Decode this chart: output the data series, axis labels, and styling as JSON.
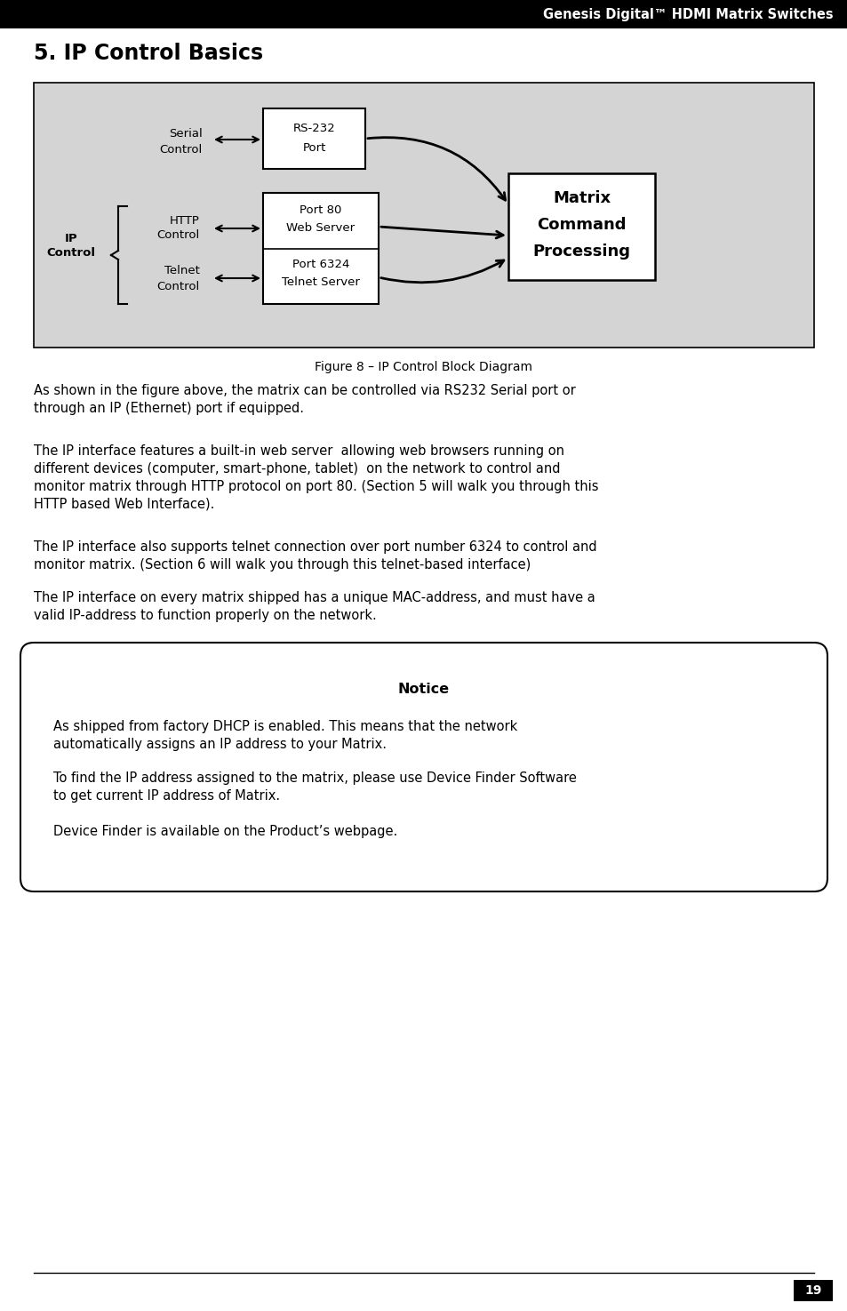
{
  "header_text": "Genesis Digital™ HDMI Matrix Switches",
  "header_bg": "#000000",
  "header_text_color": "#ffffff",
  "title": "5. IP Control Basics",
  "figure_caption": "Figure 8 – IP Control Block Diagram",
  "diagram_bg": "#d4d4d4",
  "para1": "As shown in the figure above, the matrix can be controlled via RS232 Serial port or\nthrough an IP (Ethernet) port if equipped.",
  "para2": "The IP interface features a built-in web server  allowing web browsers running on\ndifferent devices (computer, smart-phone, tablet)  on the network to control and\nmonitor matrix through HTTP protocol on port 80. (Section 5 will walk you through this\nHTTP based Web Interface).",
  "para3": "The IP interface also supports telnet connection over port number 6324 to control and\nmonitor matrix. (Section 6 will walk you through this telnet-based interface)",
  "para4": "The IP interface on every matrix shipped has a unique MAC-address, and must have a\nvalid IP-address to function properly on the network.",
  "notice_title": "Notice",
  "notice_p1": "As shipped from factory DHCP is enabled. This means that the network\nautomatically assigns an IP address to your Matrix.",
  "notice_p2": "To find the IP address assigned to the matrix, please use Device Finder Software\nto get current IP address of Matrix.",
  "notice_p3": "Device Finder is available on the Product’s webpage.",
  "page_number": "19"
}
